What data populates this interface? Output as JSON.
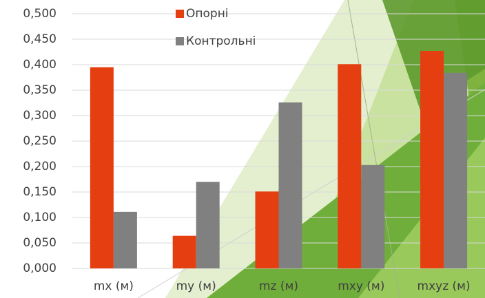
{
  "chart_data": {
    "type": "bar",
    "categories": [
      "mx (м)",
      "my (м)",
      "mz (м)",
      "mxy (м)",
      "mxyz (м)"
    ],
    "series": [
      {
        "name": "Опорні",
        "color": "#e53e10",
        "values": [
          0.395,
          0.064,
          0.151,
          0.401,
          0.427
        ]
      },
      {
        "name": "Контрольні",
        "color": "#808080",
        "values": [
          0.111,
          0.17,
          0.326,
          0.203,
          0.384
        ]
      }
    ],
    "ylim": [
      0,
      0.5
    ],
    "yticks": [
      {
        "value": 0,
        "label": "0,000"
      },
      {
        "value": 0.05,
        "label": "0,050"
      },
      {
        "value": 0.1,
        "label": "0,100"
      },
      {
        "value": 0.15,
        "label": "0,150"
      },
      {
        "value": 0.2,
        "label": "0,200"
      },
      {
        "value": 0.25,
        "label": "0,250"
      },
      {
        "value": 0.3,
        "label": "0,300"
      },
      {
        "value": 0.35,
        "label": "0,350"
      },
      {
        "value": 0.4,
        "label": "0,400"
      },
      {
        "value": 0.45,
        "label": "0,450"
      },
      {
        "value": 0.5,
        "label": "0,500"
      }
    ],
    "grid": true
  }
}
